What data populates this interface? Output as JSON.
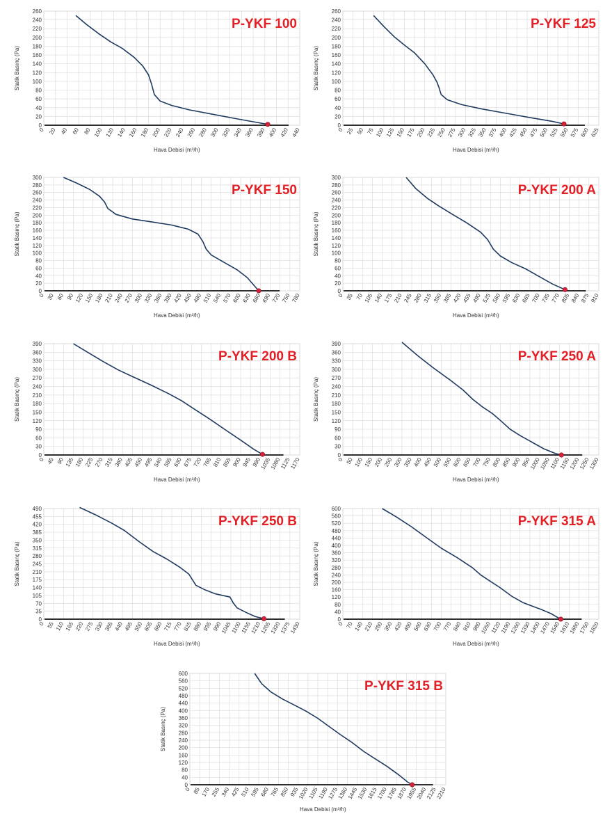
{
  "colors": {
    "curve": "#1f3a5f",
    "title": "#e31e24",
    "grid": "#dddddd",
    "marker": "#d9223a"
  },
  "chart_data": [
    {
      "type": "line",
      "title": "P-YKF 100",
      "xlabel": "Hava Debisi (m³/h)",
      "ylabel": "Statik Basınç (Pa)",
      "xlim": [
        0,
        440
      ],
      "ylim": [
        0,
        260
      ],
      "xticks": [
        0,
        20,
        40,
        60,
        80,
        100,
        120,
        140,
        160,
        180,
        200,
        220,
        240,
        260,
        280,
        300,
        320,
        340,
        360,
        380,
        400,
        420,
        440
      ],
      "yticks": [
        0,
        20,
        40,
        60,
        80,
        100,
        120,
        140,
        160,
        180,
        200,
        220,
        240,
        260
      ],
      "x": [
        55,
        75,
        95,
        115,
        135,
        155,
        170,
        180,
        185,
        190,
        200,
        220,
        250,
        290,
        330,
        360,
        385
      ],
      "y": [
        250,
        228,
        208,
        190,
        175,
        155,
        135,
        115,
        95,
        70,
        55,
        45,
        35,
        25,
        15,
        8,
        2
      ],
      "operating_point": [
        385,
        2
      ],
      "grid": true
    },
    {
      "type": "line",
      "title": "P-YKF 125",
      "xlabel": "Hava Debisi (m³/h)",
      "ylabel": "Statik Basınç (Pa)",
      "xlim": [
        0,
        625
      ],
      "ylim": [
        0,
        260
      ],
      "xticks": [
        0,
        25,
        50,
        75,
        100,
        125,
        150,
        175,
        200,
        225,
        250,
        275,
        300,
        325,
        350,
        375,
        400,
        425,
        450,
        475,
        500,
        525,
        550,
        575,
        600,
        625
      ],
      "yticks": [
        0,
        20,
        40,
        60,
        80,
        100,
        120,
        140,
        160,
        180,
        200,
        220,
        240,
        260
      ],
      "x": [
        75,
        100,
        125,
        150,
        175,
        200,
        220,
        230,
        235,
        240,
        255,
        290,
        340,
        400,
        460,
        510,
        540
      ],
      "y": [
        250,
        225,
        202,
        183,
        165,
        140,
        115,
        98,
        85,
        70,
        58,
        47,
        37,
        27,
        17,
        9,
        3
      ],
      "operating_point": [
        540,
        3
      ],
      "grid": true
    },
    {
      "type": "line",
      "title": "P-YKF 150",
      "xlabel": "Hava Debisi (m³/h)",
      "ylabel": "Statik Basınç (Pa)",
      "xlim": [
        0,
        780
      ],
      "ylim": [
        0,
        300
      ],
      "xticks": [
        0,
        30,
        60,
        90,
        120,
        150,
        180,
        210,
        240,
        270,
        300,
        330,
        360,
        390,
        420,
        450,
        480,
        510,
        540,
        570,
        600,
        630,
        660,
        690,
        720,
        750,
        780
      ],
      "yticks": [
        0,
        20,
        40,
        60,
        80,
        100,
        120,
        140,
        160,
        180,
        200,
        220,
        240,
        260,
        280,
        300
      ],
      "x": [
        60,
        100,
        140,
        170,
        185,
        195,
        220,
        270,
        330,
        390,
        440,
        470,
        485,
        495,
        510,
        550,
        590,
        620,
        645,
        655
      ],
      "y": [
        300,
        285,
        268,
        250,
        235,
        218,
        202,
        190,
        182,
        174,
        163,
        150,
        130,
        110,
        95,
        75,
        55,
        35,
        10,
        0
      ],
      "operating_point": [
        655,
        0
      ],
      "grid": true
    },
    {
      "type": "line",
      "title": "P-YKF 200 A",
      "xlabel": "Hava Debisi (m³/h)",
      "ylabel": "Statik Basınç (Pa)",
      "xlim": [
        0,
        910
      ],
      "ylim": [
        0,
        300
      ],
      "xticks": [
        0,
        35,
        70,
        105,
        140,
        175,
        210,
        245,
        280,
        315,
        350,
        385,
        420,
        455,
        490,
        525,
        560,
        595,
        630,
        665,
        700,
        735,
        770,
        805,
        840,
        875,
        910
      ],
      "yticks": [
        0,
        20,
        40,
        60,
        80,
        100,
        120,
        140,
        160,
        180,
        200,
        220,
        240,
        260,
        280,
        300
      ],
      "x": [
        225,
        260,
        300,
        340,
        390,
        440,
        490,
        515,
        535,
        560,
        600,
        650,
        700,
        745,
        790
      ],
      "y": [
        300,
        270,
        245,
        225,
        202,
        180,
        155,
        135,
        110,
        92,
        75,
        58,
        37,
        18,
        3
      ],
      "operating_point": [
        790,
        3
      ],
      "grid": true
    },
    {
      "type": "line",
      "title": "P-YKF 200 B",
      "xlabel": "Hava Debisi (m³/h)",
      "ylabel": "Statik Basınç (Pa)",
      "xlim": [
        0,
        1170
      ],
      "ylim": [
        0,
        390
      ],
      "xticks": [
        0,
        45,
        90,
        135,
        180,
        225,
        270,
        315,
        360,
        405,
        450,
        495,
        540,
        585,
        630,
        675,
        720,
        765,
        810,
        855,
        900,
        945,
        990,
        1035,
        1080,
        1125,
        1170
      ],
      "yticks": [
        0,
        30,
        60,
        90,
        120,
        150,
        180,
        210,
        240,
        270,
        300,
        330,
        360,
        390
      ],
      "x": [
        135,
        200,
        270,
        340,
        410,
        490,
        570,
        630,
        690,
        760,
        830,
        900,
        960,
        1000
      ],
      "y": [
        390,
        360,
        328,
        298,
        273,
        245,
        215,
        190,
        160,
        125,
        88,
        52,
        20,
        2
      ],
      "operating_point": [
        1000,
        2
      ],
      "grid": true
    },
    {
      "type": "line",
      "title": "P-YKF 250 A",
      "xlabel": "Hava Debisi (m³/h)",
      "ylabel": "Statik Basınç (Pa)",
      "xlim": [
        0,
        1300
      ],
      "ylim": [
        0,
        390
      ],
      "xticks": [
        0,
        50,
        100,
        150,
        200,
        250,
        300,
        350,
        400,
        450,
        500,
        550,
        600,
        650,
        700,
        750,
        800,
        850,
        900,
        950,
        1000,
        1050,
        1100,
        1150,
        1200,
        1250,
        1300
      ],
      "yticks": [
        0,
        30,
        60,
        90,
        120,
        150,
        180,
        210,
        240,
        270,
        300,
        330,
        360,
        390
      ],
      "x": [
        300,
        380,
        460,
        540,
        610,
        660,
        710,
        760,
        810,
        850,
        900,
        960,
        1020,
        1080,
        1110
      ],
      "y": [
        395,
        348,
        305,
        265,
        228,
        195,
        168,
        145,
        115,
        90,
        68,
        45,
        22,
        5,
        0
      ],
      "operating_point": [
        1110,
        0
      ],
      "grid": true
    },
    {
      "type": "line",
      "title": "P-YKF 250 B",
      "xlabel": "Hava Debisi (m³/h)",
      "ylabel": "Statik Basınç (Pa)",
      "xlim": [
        0,
        1430
      ],
      "ylim": [
        0,
        490
      ],
      "xticks": [
        0,
        55,
        110,
        165,
        220,
        275,
        330,
        385,
        440,
        495,
        550,
        605,
        660,
        715,
        770,
        825,
        880,
        935,
        990,
        1045,
        1100,
        1155,
        1210,
        1265,
        1320,
        1375,
        1430
      ],
      "yticks": [
        0,
        35,
        70,
        105,
        140,
        175,
        210,
        245,
        280,
        315,
        350,
        385,
        420,
        455,
        490
      ],
      "x": [
        200,
        290,
        380,
        450,
        530,
        610,
        690,
        760,
        810,
        830,
        850,
        900,
        960,
        1040,
        1060,
        1080,
        1130,
        1180,
        1230
      ],
      "y": [
        495,
        462,
        425,
        393,
        345,
        300,
        265,
        230,
        200,
        175,
        150,
        130,
        112,
        98,
        70,
        50,
        30,
        12,
        2
      ],
      "operating_point": [
        1230,
        2
      ],
      "grid": true
    },
    {
      "type": "line",
      "title": "P-YKF 315 A",
      "xlabel": "Hava Debisi (m³/h)",
      "ylabel": "Statik Basınç (Pa)",
      "xlim": [
        0,
        1820
      ],
      "ylim": [
        0,
        600
      ],
      "xticks": [
        0,
        70,
        140,
        210,
        280,
        350,
        420,
        490,
        560,
        630,
        700,
        770,
        840,
        910,
        980,
        1050,
        1120,
        1190,
        1260,
        1330,
        1400,
        1470,
        1540,
        1610,
        1680,
        1750,
        1820
      ],
      "yticks": [
        0,
        40,
        80,
        120,
        160,
        200,
        240,
        280,
        320,
        360,
        400,
        440,
        480,
        520,
        560,
        600
      ],
      "x": [
        280,
        380,
        490,
        590,
        700,
        810,
        920,
        980,
        1040,
        1120,
        1200,
        1280,
        1350,
        1420,
        1480,
        1530,
        1550
      ],
      "y": [
        600,
        555,
        500,
        445,
        385,
        335,
        280,
        240,
        210,
        170,
        125,
        90,
        70,
        50,
        30,
        8,
        0
      ],
      "operating_point": [
        1550,
        0
      ],
      "grid": true
    },
    {
      "type": "line",
      "title": "P-YKF 315 B",
      "xlabel": "Hava Debisi (m³/h)",
      "ylabel": "Statik Basınç (Pa)",
      "xlim": [
        0,
        2210
      ],
      "ylim": [
        0,
        600
      ],
      "xticks": [
        0,
        85,
        170,
        255,
        340,
        425,
        510,
        595,
        680,
        765,
        850,
        935,
        1020,
        1105,
        1190,
        1275,
        1360,
        1445,
        1530,
        1615,
        1700,
        1785,
        1870,
        1955,
        2040,
        2125,
        2210
      ],
      "yticks": [
        0,
        40,
        80,
        120,
        160,
        200,
        240,
        280,
        320,
        360,
        400,
        440,
        480,
        520,
        560,
        600
      ],
      "x": [
        560,
        620,
        700,
        800,
        900,
        1000,
        1100,
        1200,
        1300,
        1400,
        1500,
        1600,
        1700,
        1800,
        1880,
        1920
      ],
      "y": [
        600,
        545,
        500,
        462,
        430,
        398,
        360,
        315,
        270,
        228,
        180,
        140,
        100,
        55,
        15,
        0
      ],
      "operating_point": [
        1920,
        0
      ],
      "grid": true
    }
  ]
}
